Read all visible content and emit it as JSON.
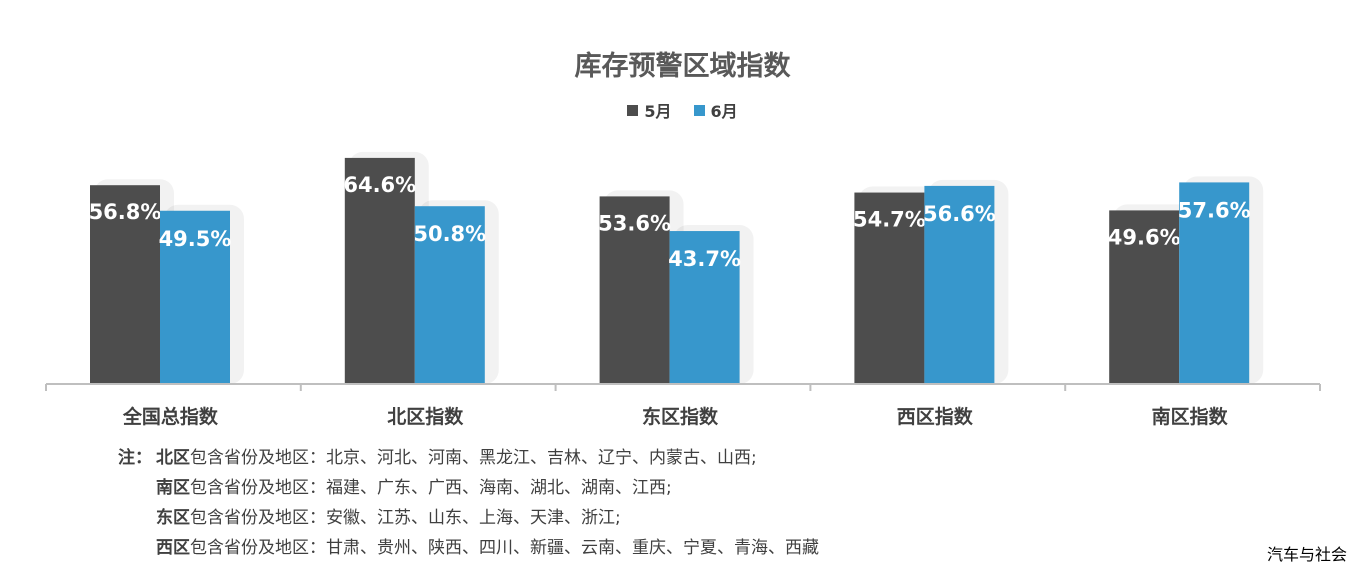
{
  "chart_data": {
    "type": "bar",
    "title": "库存预警区域指数",
    "categories": [
      "全国总指数",
      "北区指数",
      "东区指数",
      "西区指数",
      "南区指数"
    ],
    "series": [
      {
        "name": "5月",
        "values": [
          56.8,
          64.6,
          53.6,
          54.7,
          49.6
        ],
        "labels": [
          "56.8%",
          "64.6%",
          "53.6%",
          "54.7%",
          "49.6%"
        ],
        "color": "#4d4d4d"
      },
      {
        "name": "6月",
        "values": [
          49.5,
          50.8,
          43.7,
          56.6,
          57.6
        ],
        "labels": [
          "49.5%",
          "50.8%",
          "43.7%",
          "56.6%",
          "57.6%"
        ],
        "color": "#3797cc"
      }
    ],
    "ylim": [
      0,
      70
    ],
    "grid": false,
    "legend_position": "top-center",
    "xlabel": "",
    "ylabel": ""
  },
  "notes": {
    "prefix": "注：",
    "rows": [
      {
        "region": "北区",
        "text": "包含省份及地区：北京、河北、河南、黑龙江、吉林、辽宁、内蒙古、山西;"
      },
      {
        "region": "南区",
        "text": "包含省份及地区：福建、广东、广西、海南、湖北、湖南、江西;"
      },
      {
        "region": "东区",
        "text": "包含省份及地区：安徽、江苏、山东、上海、天津、浙江;"
      },
      {
        "region": "西区",
        "text": "包含省份及地区：甘肃、贵州、陕西、四川、新疆、云南、重庆、宁夏、青海、西藏"
      }
    ]
  },
  "watermark": "汽车与社会"
}
